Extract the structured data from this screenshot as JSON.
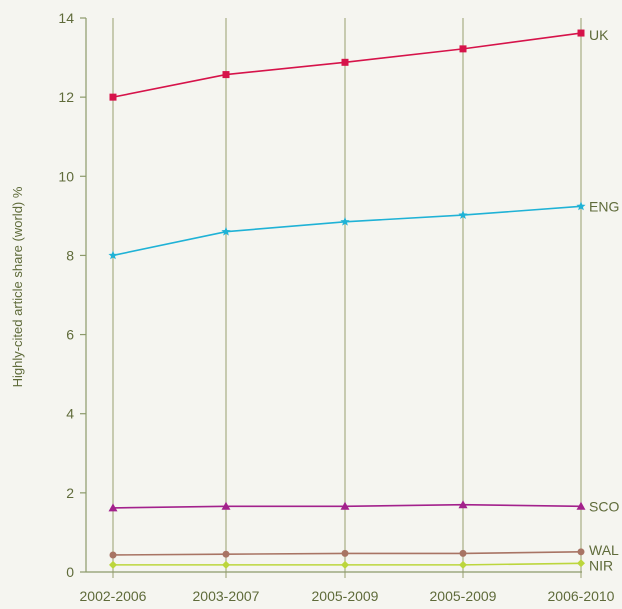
{
  "chart_data": {
    "type": "line",
    "title": "",
    "xlabel": "",
    "ylabel": "Highly-cited article share (world) %",
    "categories": [
      "2002-2006",
      "2003-2007",
      "2005-2009",
      "2005-2009",
      "2006-2010"
    ],
    "ylim": [
      0,
      14
    ],
    "yticks": [
      0,
      2,
      4,
      6,
      8,
      10,
      12,
      14
    ],
    "grid": "vertical",
    "series": [
      {
        "name": "UK",
        "color": "#d6134a",
        "marker": "square",
        "values": [
          12.0,
          12.57,
          12.88,
          13.22,
          13.62
        ]
      },
      {
        "name": "ENG",
        "color": "#1fb2d6",
        "marker": "star",
        "values": [
          8.0,
          8.6,
          8.85,
          9.02,
          9.24
        ]
      },
      {
        "name": "SCO",
        "color": "#a3218c",
        "marker": "triangle",
        "values": [
          1.62,
          1.66,
          1.66,
          1.7,
          1.66
        ]
      },
      {
        "name": "WAL",
        "color": "#a87464",
        "marker": "circle",
        "values": [
          0.43,
          0.45,
          0.47,
          0.47,
          0.51
        ]
      },
      {
        "name": "NIR",
        "color": "#bcd63c",
        "marker": "diamond",
        "values": [
          0.18,
          0.18,
          0.18,
          0.18,
          0.22
        ]
      }
    ],
    "axis_color": "#8c9a6a",
    "text_color": "#5f6b3a",
    "grid_color": "#a8ad84"
  }
}
